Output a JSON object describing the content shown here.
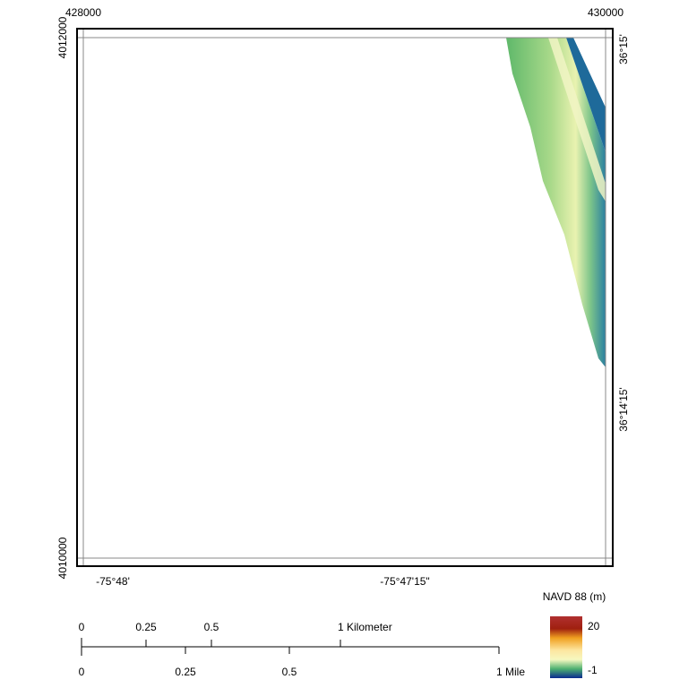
{
  "map": {
    "top_labels": [
      "428000",
      "430000"
    ],
    "left_labels": [
      "4012000",
      "4010000"
    ],
    "right_labels": [
      "36°15'",
      "36°14'15'"
    ],
    "bottom_labels": [
      "-75°48'",
      "-75°47'15\""
    ]
  },
  "scale_bar": {
    "km_labels": [
      "0",
      "0.25",
      "0.5",
      "1 Kilometer"
    ],
    "mile_labels": [
      "0",
      "0.25",
      "0.5",
      "1 Mile"
    ]
  },
  "legend": {
    "title": "NAVD 88 (m)",
    "max": 20,
    "min": -1
  }
}
